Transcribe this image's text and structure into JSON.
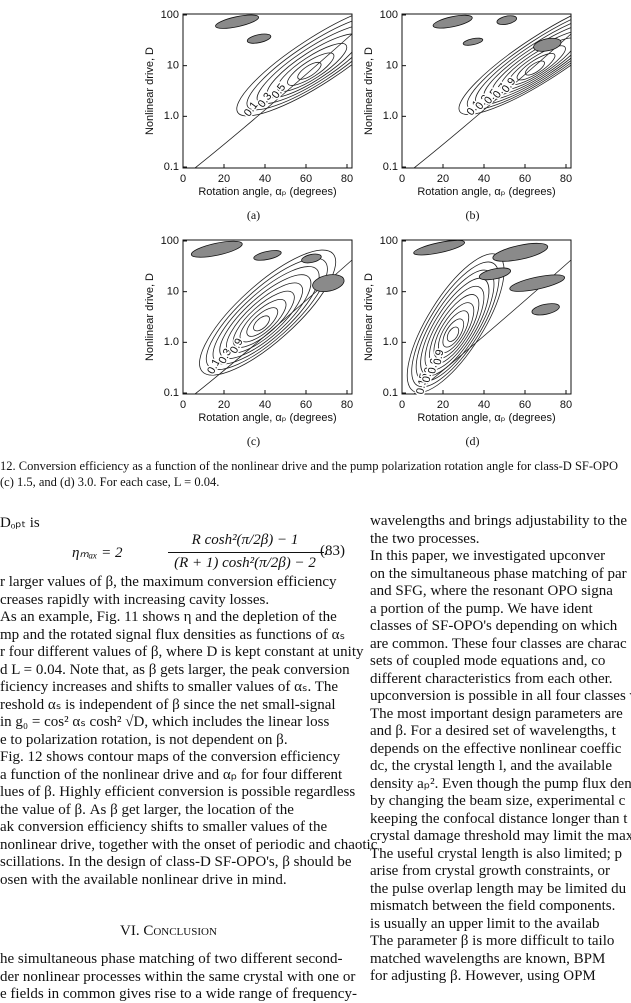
{
  "figure": {
    "panels": [
      {
        "label": "(a)",
        "y_axis_label": "Nonlinear drive, D",
        "x_axis_label": "Rotation angle, αₚ (degrees)",
        "yticks": [
          "100",
          "10",
          "1.0",
          "0.1"
        ],
        "xticks": [
          "0",
          "20",
          "40",
          "60",
          "80"
        ],
        "contour_labels": [
          "0.1",
          "0.3",
          "0.5"
        ]
      },
      {
        "label": "(b)",
        "y_axis_label": "Nonlinear drive, D",
        "x_axis_label": "Rotation angle, αₚ (degrees)",
        "yticks": [
          "100",
          "10",
          "1.0",
          "0.1"
        ],
        "xticks": [
          "0",
          "20",
          "40",
          "60",
          "80"
        ],
        "contour_labels": [
          "0.1",
          "0.3",
          "0.5",
          "0.7",
          "0.9"
        ]
      },
      {
        "label": "(c)",
        "y_axis_label": "Nonlinear drive, D",
        "x_axis_label": "Rotation angle, αₚ (degrees)",
        "yticks": [
          "100",
          "10",
          "1.0",
          "0.1"
        ],
        "xticks": [
          "0",
          "20",
          "40",
          "60",
          "80"
        ],
        "contour_labels": [
          "0.1",
          "0.3",
          "0.9"
        ]
      },
      {
        "label": "(d)",
        "y_axis_label": "Nonlinear drive, D",
        "x_axis_label": "Rotation angle, αₚ (degrees)",
        "yticks": [
          "100",
          "10",
          "1.0",
          "0.1"
        ],
        "xticks": [
          "0",
          "20",
          "40",
          "60",
          "80"
        ],
        "contour_labels": [
          "0.15",
          "0.3",
          "0.6",
          "0.9"
        ]
      }
    ],
    "caption": [
      "12.   Conversion efficiency as a function of the nonlinear drive and the pump polarization rotation angle for class-D SF-OPO",
      "(c) 1.5, and (d) 3.0. For each case, L = 0.04."
    ]
  },
  "body": {
    "left_column": {
      "lead": "Dₒₚₜ is",
      "equation": {
        "lhs": "ηₘₐₓ = 2",
        "numerator": "R cosh²(π/2β) − 1",
        "denominator": "(R + 1) cosh²(π/2β) − 2",
        "end": ".",
        "number": "(83)"
      },
      "lines": [
        "r larger values of β, the maximum conversion efficiency",
        "creases rapidly with increasing cavity losses.",
        "As an example, Fig. 11 shows η and the depletion of the",
        "mp and the rotated signal flux densities as functions of αₛ",
        "r four different values of β, where D is kept constant at unity",
        "d L = 0.04. Note that, as β gets larger, the peak conversion",
        "ficiency increases and shifts to smaller values of αₛ. The",
        "reshold αₛ is independent of β since the net small-signal",
        "in g₀ = cos² αₛ cosh² √D, which includes the linear loss",
        "e to polarization rotation, is not dependent on β.",
        "Fig. 12 shows contour maps of the conversion efficiency",
        "a function of the nonlinear drive and αₚ for four different",
        "lues of β. Highly efficient conversion is possible regardless",
        "the value of β. As β get larger, the location of the",
        "ak conversion efficiency shifts to smaller values of the",
        "nonlinear drive, together with the onset of periodic and chaotic",
        "scillations. In the design of class-D SF-OPO's, β should be",
        "osen with the available nonlinear drive in mind."
      ],
      "heading": "VI.  Conclusion",
      "lines_after_heading": [
        "he simultaneous phase matching of two different second-",
        "der nonlinear processes within the same crystal with one or",
        "e fields in common gives rise to a wide range of frequency-"
      ]
    },
    "right_column": {
      "lines": [
        "wavelengths and brings adjustability to the",
        "the two processes.",
        "In this paper, we investigated upconver",
        "on the simultaneous phase matching of par",
        "and SFG, where the resonant OPO signa",
        "a portion of the pump. We have ident",
        "classes of SF-OPO's depending on which",
        "are common. These four classes are charac",
        "sets of coupled mode equations and, co",
        "different characteristics from each other.",
        "upconversion is possible in all four classes w",
        "The most important design parameters are",
        "and β. For a desired set of wavelengths, t",
        "depends on the effective nonlinear coeffic",
        "dc, the crystal length l, and the available",
        "density aₚ². Even though the pump flux den",
        "by changing the beam size, experimental c",
        "keeping the confocal distance longer than t",
        "crystal damage threshold may limit the max",
        "The useful crystal length is also limited; p",
        "arise from crystal growth constraints, or",
        "the pulse overlap length may be limited du",
        "mismatch between the field components.",
        "is usually an upper limit to the availab",
        "The parameter β is more difficult to tailo",
        "matched wavelengths are known, BPM",
        "for adjusting β. However, using OPM"
      ]
    }
  }
}
